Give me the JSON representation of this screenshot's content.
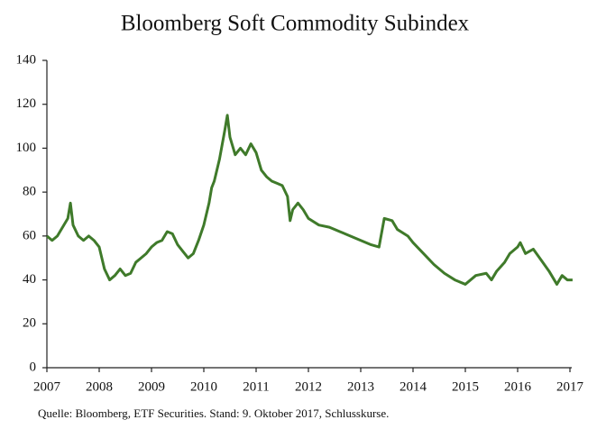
{
  "chart_data": {
    "type": "line",
    "title": "Bloomberg Soft Commodity Subindex",
    "source": "Quelle: Bloomberg, ETF Securities. Stand: 9. Oktober 2017, Schlusskurse.",
    "x": [
      2007.0,
      2007.1,
      2007.2,
      2007.3,
      2007.4,
      2007.45,
      2007.5,
      2007.6,
      2007.7,
      2007.8,
      2007.9,
      2008.0,
      2008.1,
      2008.2,
      2008.3,
      2008.4,
      2008.5,
      2008.6,
      2008.7,
      2008.8,
      2008.9,
      2009.0,
      2009.1,
      2009.2,
      2009.3,
      2009.4,
      2009.5,
      2009.6,
      2009.7,
      2009.8,
      2009.9,
      2010.0,
      2010.1,
      2010.15,
      2010.2,
      2010.3,
      2010.4,
      2010.45,
      2010.5,
      2010.6,
      2010.7,
      2010.8,
      2010.9,
      2011.0,
      2011.1,
      2011.2,
      2011.3,
      2011.4,
      2011.5,
      2011.6,
      2011.65,
      2011.7,
      2011.8,
      2011.9,
      2012.0,
      2012.2,
      2012.4,
      2012.6,
      2012.8,
      2013.0,
      2013.2,
      2013.35,
      2013.45,
      2013.6,
      2013.7,
      2013.9,
      2014.0,
      2014.2,
      2014.4,
      2014.6,
      2014.8,
      2015.0,
      2015.2,
      2015.4,
      2015.5,
      2015.6,
      2015.75,
      2015.85,
      2016.0,
      2016.05,
      2016.15,
      2016.3,
      2016.45,
      2016.6,
      2016.75,
      2016.85,
      2016.95,
      2017.05
    ],
    "series": [
      {
        "name": "Bloomberg Soft Commodity Subindex",
        "color": "#3f7a2a",
        "values": [
          60,
          58,
          60,
          64,
          68,
          75,
          65,
          60,
          58,
          60,
          58,
          55,
          45,
          40,
          42,
          45,
          42,
          43,
          48,
          50,
          52,
          55,
          57,
          58,
          62,
          61,
          56,
          53,
          50,
          52,
          58,
          65,
          75,
          82,
          85,
          95,
          108,
          115,
          105,
          97,
          100,
          97,
          102,
          98,
          90,
          87,
          85,
          84,
          83,
          78,
          67,
          72,
          75,
          72,
          68,
          65,
          64,
          62,
          60,
          58,
          56,
          55,
          68,
          67,
          63,
          60,
          57,
          52,
          47,
          43,
          40,
          38,
          42,
          43,
          40,
          44,
          48,
          52,
          55,
          57,
          52,
          54,
          49,
          44,
          38,
          42,
          40,
          40
        ]
      }
    ],
    "xlim": [
      2007,
      2017
    ],
    "xticks": [
      2007,
      2008,
      2009,
      2010,
      2011,
      2012,
      2013,
      2014,
      2015,
      2016,
      2017
    ],
    "ylim": [
      0,
      140
    ],
    "yticks": [
      0,
      20,
      40,
      60,
      80,
      100,
      120,
      140
    ]
  }
}
